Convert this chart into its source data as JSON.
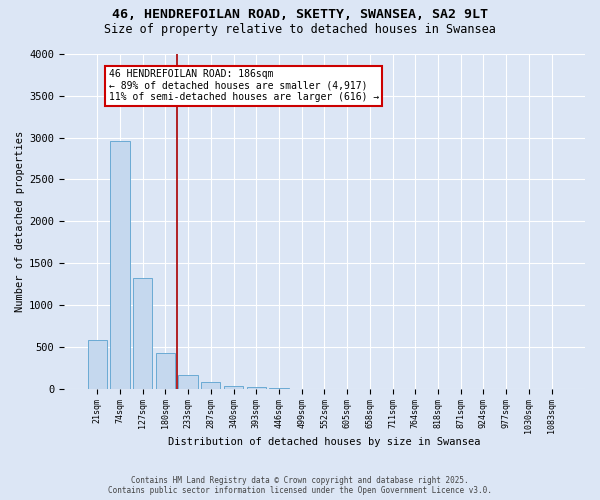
{
  "title_line1": "46, HENDREFOILAN ROAD, SKETTY, SWANSEA, SA2 9LT",
  "title_line2": "Size of property relative to detached houses in Swansea",
  "xlabel": "Distribution of detached houses by size in Swansea",
  "ylabel": "Number of detached properties",
  "bar_labels": [
    "21sqm",
    "74sqm",
    "127sqm",
    "180sqm",
    "233sqm",
    "287sqm",
    "340sqm",
    "393sqm",
    "446sqm",
    "499sqm",
    "552sqm",
    "605sqm",
    "658sqm",
    "711sqm",
    "764sqm",
    "818sqm",
    "871sqm",
    "924sqm",
    "977sqm",
    "1030sqm",
    "1083sqm"
  ],
  "bar_values": [
    580,
    2960,
    1320,
    430,
    160,
    80,
    35,
    20,
    5,
    0,
    0,
    0,
    0,
    0,
    0,
    0,
    0,
    0,
    0,
    0,
    0
  ],
  "bar_color": "#c5d8ee",
  "bar_edge_color": "#6aaad4",
  "vline_color": "#aa0000",
  "vline_x_index": 3.5,
  "annotation_text": "46 HENDREFOILAN ROAD: 186sqm\n← 89% of detached houses are smaller (4,917)\n11% of semi-detached houses are larger (616) →",
  "annotation_box_color": "#ffffff",
  "annotation_edge_color": "#cc0000",
  "background_color": "#dce6f5",
  "grid_color": "#ffffff",
  "ylim": [
    0,
    4000
  ],
  "yticks": [
    0,
    500,
    1000,
    1500,
    2000,
    2500,
    3000,
    3500,
    4000
  ],
  "footer_text": "Contains HM Land Registry data © Crown copyright and database right 2025.\nContains public sector information licensed under the Open Government Licence v3.0."
}
